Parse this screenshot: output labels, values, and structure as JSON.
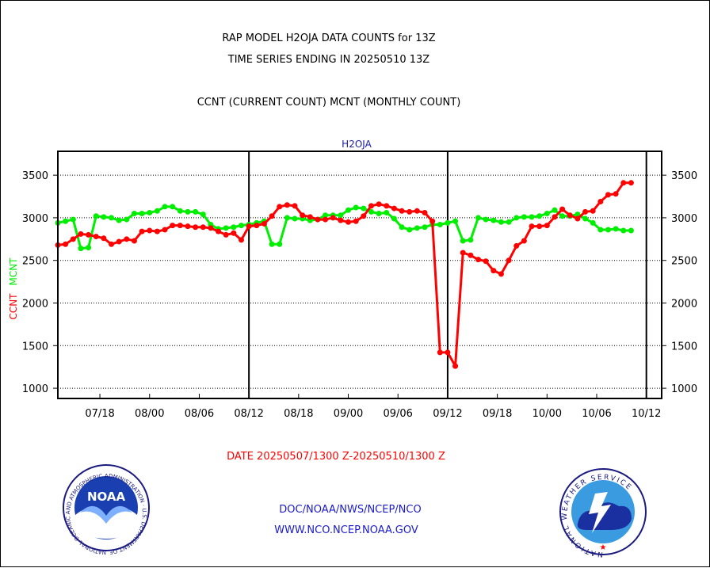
{
  "header": {
    "title_line1": "RAP MODEL H2OJA DATA COUNTS for 13Z",
    "title_line2": "TIME SERIES ENDING IN 20250510 13Z",
    "subtitle": "CCNT (CURRENT COUNT) MCNT (MONTHLY COUNT)"
  },
  "footer": {
    "date_range": "DATE 20250507/1300 Z-20250510/1300 Z",
    "org_path": "DOC/NOAA/NWS/NCEP/NCO",
    "website": "WWW.NCO.NCEP.NOAA.GOV"
  },
  "logos": {
    "noaa_text": "NOAA",
    "noaa_ring": "NATIONAL OCEANIC AND ATMOSPHERIC ADMINISTRATION · U.S. DEPARTMENT OF COMMERCE",
    "nws_ring": "NATIONAL WEATHER SERVICE"
  },
  "colors": {
    "ccnt": "#ff0000",
    "mcnt": "#00ee00",
    "panel_label": "#1a1aa8",
    "footer_blue": "#1a1acc",
    "date_red": "#ff0000"
  },
  "chart_data": {
    "type": "line",
    "panel_label": "H2OJA",
    "ylabel_ccnt": "CCNT",
    "ylabel_mcnt": "MCNT",
    "ylim": [
      880,
      3780
    ],
    "yticks": [
      1000,
      1500,
      2000,
      2500,
      3000,
      3500
    ],
    "xlim": [
      0,
      79
    ],
    "xticks": [
      {
        "x": 5.5,
        "label": "07/18"
      },
      {
        "x": 12,
        "label": "08/00"
      },
      {
        "x": 18.5,
        "label": "08/06"
      },
      {
        "x": 25,
        "label": "08/12"
      },
      {
        "x": 31.5,
        "label": "08/18"
      },
      {
        "x": 38,
        "label": "09/00"
      },
      {
        "x": 44.5,
        "label": "09/06"
      },
      {
        "x": 51,
        "label": "09/12"
      },
      {
        "x": 57.5,
        "label": "09/18"
      },
      {
        "x": 64,
        "label": "10/00"
      },
      {
        "x": 70.5,
        "label": "10/06"
      },
      {
        "x": 77,
        "label": "10/12"
      }
    ],
    "day_boundaries": [
      25,
      51,
      77
    ],
    "grid": "horizontal dotted",
    "series": [
      {
        "name": "CCNT",
        "color": "#ff0000",
        "values": [
          2680,
          2690,
          2750,
          2810,
          2800,
          2780,
          2760,
          2690,
          2720,
          2750,
          2730,
          2840,
          2850,
          2840,
          2860,
          2910,
          2910,
          2900,
          2890,
          2890,
          2880,
          2840,
          2800,
          2820,
          2740,
          2900,
          2910,
          2930,
          3020,
          3130,
          3150,
          3140,
          3030,
          3010,
          2980,
          2980,
          3000,
          2970,
          2950,
          2960,
          3020,
          3140,
          3160,
          3140,
          3110,
          3080,
          3070,
          3080,
          3060,
          2960,
          1420,
          1420,
          1260,
          2590,
          2560,
          2510,
          2490,
          2380,
          2340,
          2500,
          2670,
          2730,
          2900,
          2900,
          2910,
          3010,
          3100,
          3030,
          2990,
          3070,
          3080,
          3190,
          3270,
          3280,
          3410,
          3410
        ]
      },
      {
        "name": "MCNT",
        "color": "#00ee00",
        "values": [
          2940,
          2960,
          2980,
          2640,
          2650,
          3020,
          3010,
          3000,
          2970,
          2980,
          3050,
          3050,
          3060,
          3080,
          3130,
          3130,
          3080,
          3070,
          3070,
          3040,
          2920,
          2870,
          2880,
          2890,
          2910,
          2920,
          2940,
          2960,
          2690,
          2690,
          3000,
          2990,
          2990,
          2970,
          2980,
          3030,
          3030,
          3030,
          3090,
          3120,
          3110,
          3070,
          3050,
          3060,
          2990,
          2890,
          2860,
          2880,
          2890,
          2920,
          2920,
          2940,
          2960,
          2730,
          2740,
          3000,
          2980,
          2970,
          2950,
          2950,
          3000,
          3010,
          3010,
          3020,
          3050,
          3090,
          3020,
          3020,
          3040,
          2990,
          2940,
          2860,
          2860,
          2870,
          2850,
          2850
        ]
      }
    ]
  }
}
